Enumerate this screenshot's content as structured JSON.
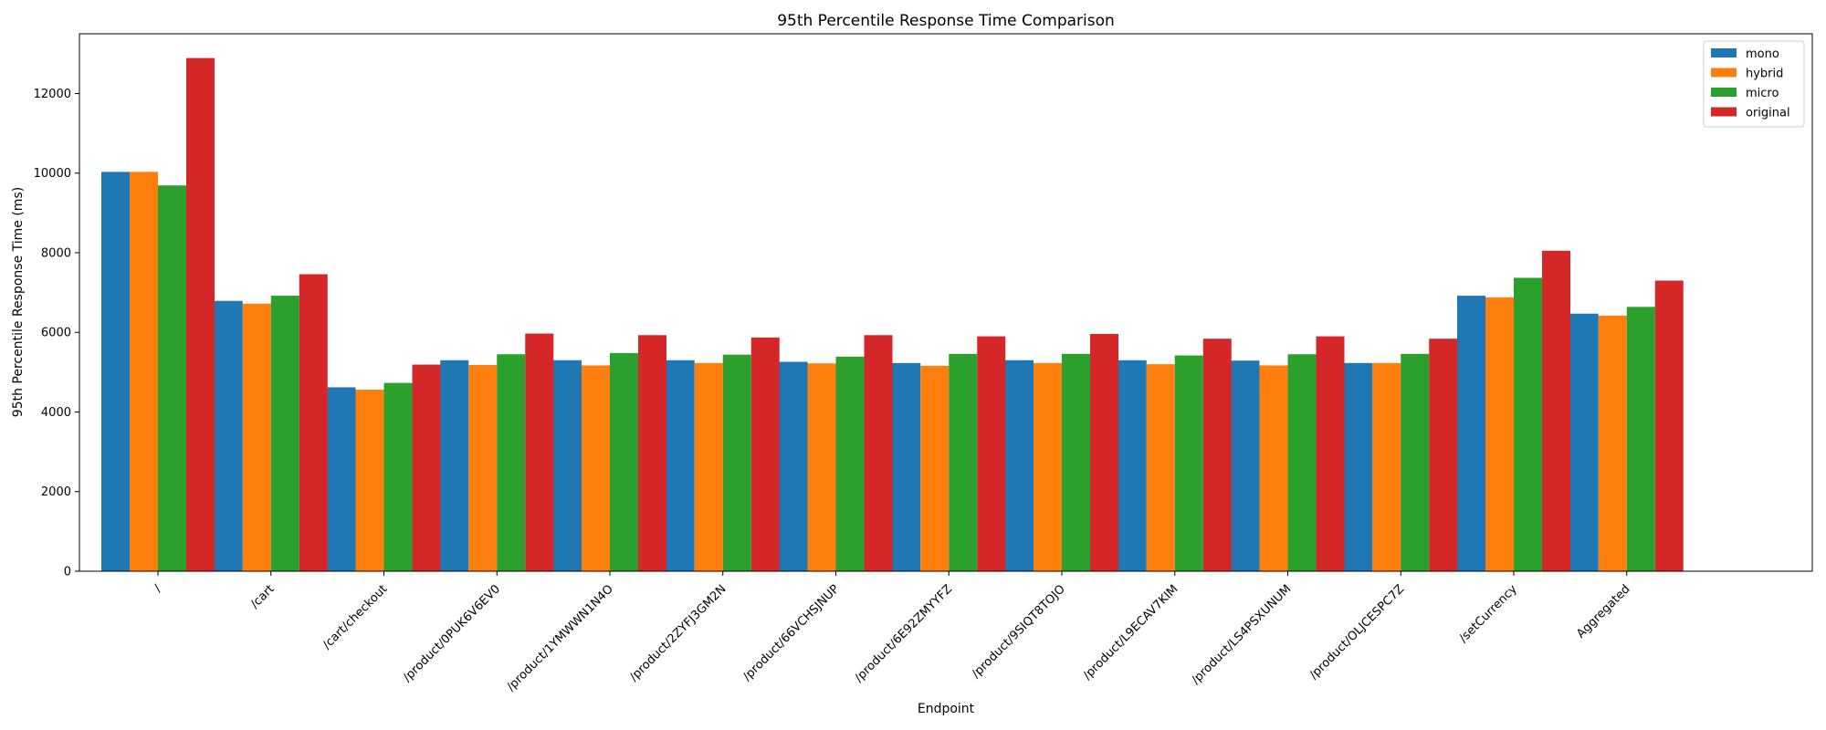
{
  "chart_data": {
    "type": "bar",
    "title": "95th Percentile Response Time Comparison",
    "xlabel": "Endpoint",
    "ylabel": "95th Percentile Response Time (ms)",
    "ylim": [
      0,
      13500
    ],
    "yticks": [
      0,
      2000,
      4000,
      6000,
      8000,
      10000,
      12000
    ],
    "grid": false,
    "legend_position": "top-right",
    "categories": [
      "/",
      "/cart",
      "/cart/checkout",
      "/product/0PUK6V6EV0",
      "/product/1YMWWN1N4O",
      "/product/2ZYFJ3GM2N",
      "/product/66VCHSJNUP",
      "/product/6E92ZMYYFZ",
      "/product/9SIQT8TOJO",
      "/product/L9ECAV7KIM",
      "/product/LS4PSXUNUM",
      "/product/OLJCESPC7Z",
      "/setCurrency",
      "Aggregated"
    ],
    "series": [
      {
        "name": "mono",
        "color": "#1f77b4",
        "values": [
          10030,
          6790,
          4620,
          5300,
          5300,
          5300,
          5260,
          5230,
          5300,
          5300,
          5290,
          5230,
          6920,
          6470
        ]
      },
      {
        "name": "hybrid",
        "color": "#ff7f0e",
        "values": [
          10030,
          6720,
          4560,
          5180,
          5170,
          5230,
          5220,
          5160,
          5230,
          5200,
          5170,
          5230,
          6880,
          6420
        ]
      },
      {
        "name": "micro",
        "color": "#2ca02c",
        "values": [
          9690,
          6920,
          4730,
          5450,
          5480,
          5440,
          5390,
          5460,
          5460,
          5420,
          5450,
          5460,
          7370,
          6640
        ]
      },
      {
        "name": "original",
        "color": "#d62728",
        "values": [
          12890,
          7460,
          5190,
          5970,
          5930,
          5870,
          5930,
          5900,
          5960,
          5840,
          5900,
          5840,
          8050,
          7300
        ]
      }
    ]
  }
}
